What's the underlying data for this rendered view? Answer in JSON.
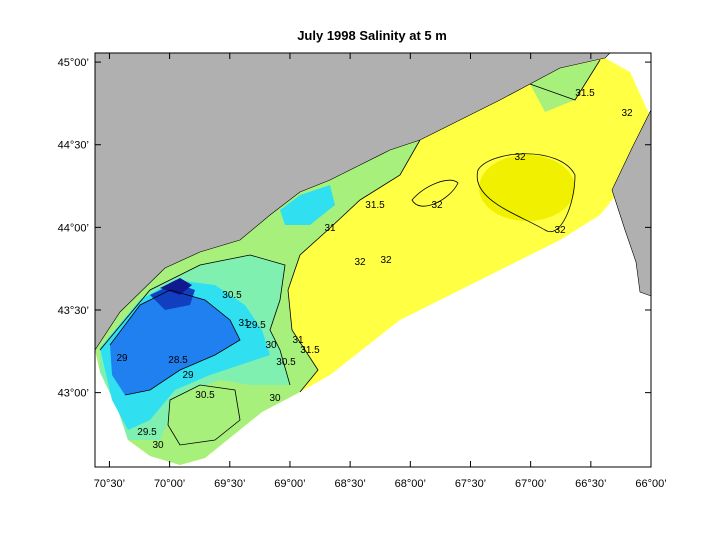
{
  "map": {
    "title": "July 1998  Salinity at 5 m",
    "xlim": [
      -70.62,
      -66.0
    ],
    "ylim": [
      42.55,
      45.055
    ],
    "xticks": [
      {
        "value": -70.5,
        "label": "70°30’"
      },
      {
        "value": -70.0,
        "label": "70°00’"
      },
      {
        "value": -69.5,
        "label": "69°30’"
      },
      {
        "value": -69.0,
        "label": "69°00’"
      },
      {
        "value": -68.5,
        "label": "68°30’"
      },
      {
        "value": -68.0,
        "label": "68°00’"
      },
      {
        "value": -67.5,
        "label": "67°30’"
      },
      {
        "value": -67.0,
        "label": "67°00’"
      },
      {
        "value": -66.5,
        "label": "66°30’"
      },
      {
        "value": -66.0,
        "label": "66°00’"
      }
    ],
    "yticks": [
      {
        "value": 43.0,
        "label": "43°00’"
      },
      {
        "value": 43.5,
        "label": "43°30’"
      },
      {
        "value": 44.0,
        "label": "44°00’"
      },
      {
        "value": 44.5,
        "label": "44°30’"
      },
      {
        "value": 45.0,
        "label": "45°00’"
      }
    ],
    "contour_labels": [
      "32",
      "32",
      "31.5",
      "32",
      "32",
      "32",
      "32",
      "31.5",
      "31",
      "30.5",
      "31",
      "29.5",
      "30",
      "30.5",
      "31",
      "31.5",
      "29",
      "28.5",
      "29",
      "30.5",
      "30",
      "29.5",
      "30"
    ]
  }
}
